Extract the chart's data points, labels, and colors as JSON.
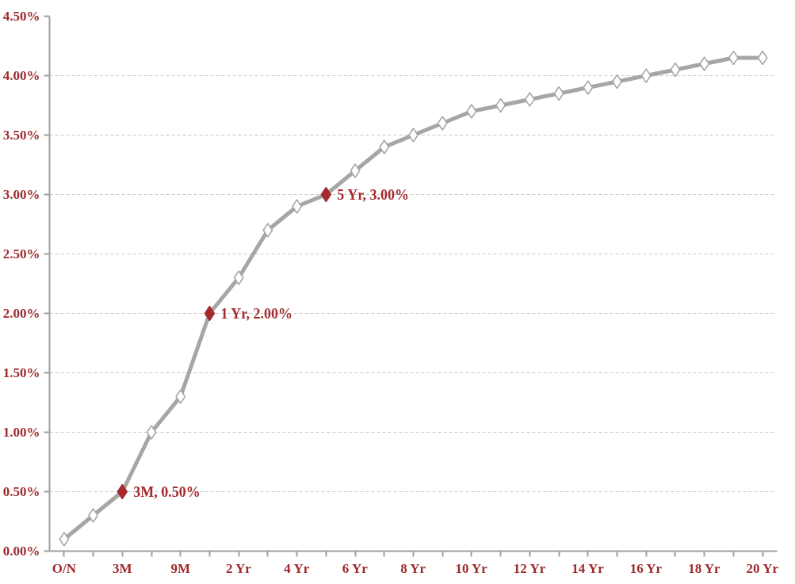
{
  "chart_data": {
    "type": "line",
    "categories": [
      "O/N",
      null,
      "3M",
      null,
      "9M",
      null,
      "2 Yr",
      null,
      "4 Yr",
      null,
      "6 Yr",
      null,
      "8 Yr",
      null,
      "10 Yr",
      null,
      "12 Yr",
      null,
      "14 Yr",
      null,
      "16 Yr",
      null,
      "18 Yr",
      null,
      "20 Yr"
    ],
    "series": [
      {
        "color": "#a6a6a6",
        "marker": "diamond",
        "values": [
          0.1,
          0.3,
          0.5,
          1.0,
          1.3,
          2.0,
          2.3,
          2.7,
          2.9,
          3.0,
          3.2,
          3.4,
          3.5,
          3.6,
          3.7,
          3.75,
          3.8,
          3.85,
          3.9,
          3.95,
          4.0,
          4.05,
          4.1,
          4.15,
          4.15
        ]
      },
      {
        "type": "scatter",
        "color": "#a52a2e",
        "marker": "diamond",
        "values": [
          null,
          null,
          0.5,
          null,
          null,
          2.0,
          null,
          null,
          null,
          3.0,
          null,
          null,
          null,
          null,
          null,
          null,
          null,
          null,
          null,
          null,
          null,
          null,
          null,
          null,
          null
        ],
        "value_labels": [
          null,
          null,
          "3M, 0.50%",
          null,
          null,
          "1 Yr, 2.00%",
          null,
          null,
          null,
          "5 Yr, 3.00%",
          null,
          null,
          null,
          null,
          null,
          null,
          null,
          null,
          null,
          null,
          null,
          null,
          null,
          null,
          null
        ]
      }
    ],
    "ylim": [
      0,
      4.5
    ],
    "yticks": [
      {
        "value": 0,
        "label": "0.00%"
      },
      {
        "value": 0.5,
        "label": "0.50%"
      },
      {
        "value": 1,
        "label": "1.00%"
      },
      {
        "value": 1.5,
        "label": "1.50%"
      },
      {
        "value": 2,
        "label": "2.00%"
      },
      {
        "value": 2.5,
        "label": "2.50%"
      },
      {
        "value": 3,
        "label": "3.00%"
      },
      {
        "value": 3.5,
        "label": "3.50%"
      },
      {
        "value": 4,
        "label": "4.00%"
      },
      {
        "value": 4.5,
        "label": "4.50%"
      }
    ],
    "grid": "y",
    "line_style": "solid"
  }
}
